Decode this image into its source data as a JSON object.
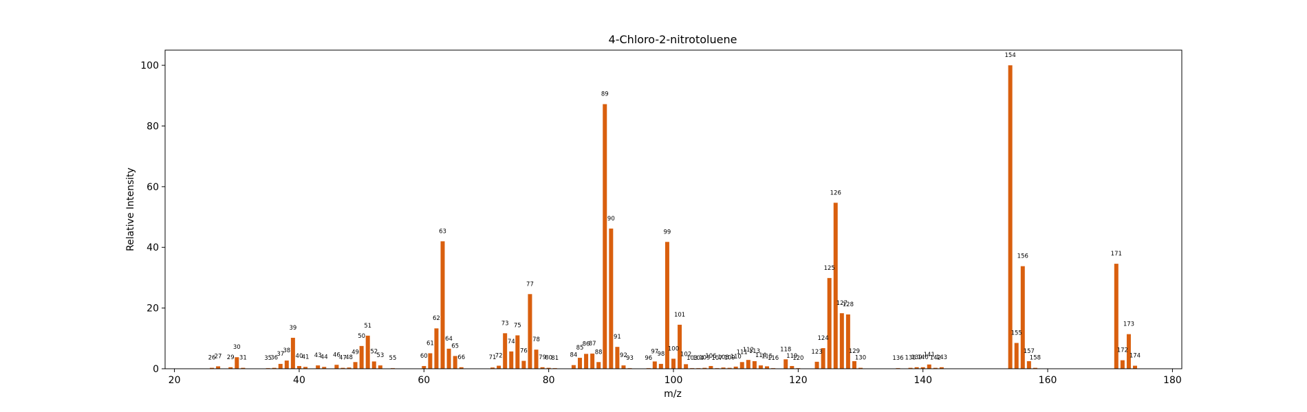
{
  "chart_data": {
    "type": "bar",
    "title": "4-Chloro-2-nitrotoluene",
    "xlabel": "m/z",
    "ylabel": "Relative Intensity",
    "xlim": [
      18.5,
      181.5
    ],
    "ylim": [
      0,
      105
    ],
    "xticks": [
      20,
      40,
      60,
      80,
      100,
      120,
      140,
      160,
      180
    ],
    "yticks": [
      0,
      20,
      40,
      60,
      80,
      100
    ],
    "bar_color": "#d95f0e",
    "grid": false,
    "x": [
      26,
      27,
      29,
      30,
      31,
      35,
      36,
      37,
      38,
      39,
      40,
      41,
      43,
      44,
      46,
      47,
      48,
      49,
      50,
      51,
      52,
      53,
      55,
      60,
      61,
      62,
      63,
      64,
      65,
      66,
      71,
      72,
      73,
      74,
      75,
      76,
      77,
      78,
      79,
      80,
      81,
      84,
      85,
      86,
      87,
      88,
      89,
      90,
      91,
      92,
      93,
      96,
      97,
      98,
      99,
      100,
      101,
      102,
      103,
      104,
      105,
      106,
      107,
      108,
      109,
      110,
      111,
      112,
      113,
      114,
      115,
      116,
      118,
      119,
      120,
      123,
      124,
      125,
      126,
      127,
      128,
      129,
      130,
      136,
      138,
      139,
      140,
      141,
      142,
      143,
      154,
      155,
      156,
      157,
      158,
      171,
      172,
      173,
      174
    ],
    "values": [
      0.3,
      0.8,
      0.5,
      3.8,
      0.3,
      0.2,
      0.3,
      1.6,
      2.7,
      10.2,
      0.9,
      0.6,
      1.1,
      0.6,
      1.3,
      0.3,
      0.4,
      2.2,
      7.5,
      10.9,
      2.4,
      1.1,
      0.2,
      0.9,
      5.1,
      13.3,
      42.0,
      6.6,
      4.2,
      0.5,
      0.4,
      1.0,
      11.7,
      5.7,
      11.0,
      2.6,
      24.6,
      6.3,
      0.5,
      0.3,
      0.2,
      1.2,
      3.6,
      4.9,
      5.0,
      2.2,
      87.2,
      46.2,
      7.2,
      1.1,
      0.2,
      0.2,
      2.4,
      1.6,
      41.8,
      3.3,
      14.5,
      1.5,
      0.2,
      0.2,
      0.3,
      0.9,
      0.2,
      0.4,
      0.3,
      0.7,
      2.2,
      2.9,
      2.5,
      1.1,
      0.8,
      0.2,
      3.1,
      0.9,
      0.2,
      2.3,
      6.8,
      29.9,
      54.7,
      18.3,
      17.9,
      2.5,
      0.3,
      0.2,
      0.3,
      0.5,
      0.5,
      1.4,
      0.3,
      0.5,
      100.0,
      8.5,
      33.8,
      2.5,
      0.3,
      34.6,
      2.8,
      11.4,
      1.0
    ]
  }
}
